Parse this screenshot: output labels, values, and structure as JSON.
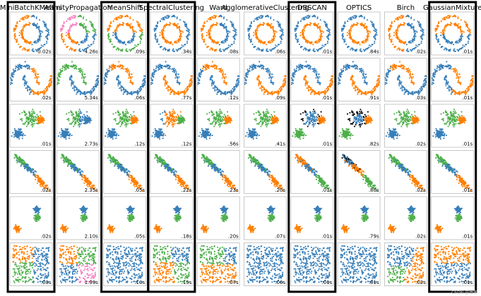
{
  "colors": {
    "blue": "#377eb8",
    "orange": "#ff7f00",
    "green": "#4daf4a",
    "pink": "#f781bf",
    "noise": "#000000",
    "highlight_frame": "#000000",
    "panel_border": "#bbbbbb"
  },
  "datasets": [
    "noisy-circles",
    "noisy-moons",
    "blobs-varied",
    "aniso",
    "blobs",
    "no-structure"
  ],
  "algorithms": [
    {
      "title": "MiniBatchKMeans",
      "highlighted": true,
      "times": [
        "0.02s",
        ".02s",
        ".01s",
        ".02s",
        ".02s",
        ".03s"
      ]
    },
    {
      "title": "AffinityPropagation",
      "highlighted": false,
      "times": [
        "4.26s",
        "5.34s",
        "2.73s",
        "2.35s",
        "2.10s",
        "1.99s"
      ]
    },
    {
      "title": "MeanShift",
      "highlighted": true,
      "times": [
        ".09s",
        ".06s",
        ".12s",
        ".05s",
        ".05s",
        ".10s"
      ]
    },
    {
      "title": "SpectralClustering",
      "highlighted": true,
      "times": [
        ".34s",
        ".77s",
        ".12s",
        ".22s",
        ".18s",
        ".15s"
      ]
    },
    {
      "title": "Ward",
      "highlighted": false,
      "times": [
        ".08s",
        ".12s",
        ".56s",
        ".23s",
        ".20s",
        ".07s"
      ]
    },
    {
      "title": "AgglomerativeClustering",
      "highlighted": false,
      "times": [
        ".06s",
        ".09s",
        ".41s",
        ".20s",
        ".07s",
        ".06s"
      ]
    },
    {
      "title": "DBSCAN",
      "highlighted": true,
      "times": [
        ".01s",
        ".01s",
        ".01s",
        ".01s",
        ".01s",
        ".01s"
      ]
    },
    {
      "title": "OPTICS",
      "highlighted": false,
      "times": [
        ".84s",
        ".91s",
        ".82s",
        ".80s",
        ".79s",
        ".81s"
      ]
    },
    {
      "title": "Birch",
      "highlighted": false,
      "times": [
        ".02s",
        ".03s",
        ".02s",
        ".02s",
        ".02s",
        ".02s"
      ]
    },
    {
      "title": "GaussianMixture",
      "highlighted": true,
      "times": [
        ".01s",
        ".01s",
        ".01s",
        ".01s",
        ".01s",
        ".01s"
      ]
    }
  ],
  "watermark": "CSDN @博客"
}
